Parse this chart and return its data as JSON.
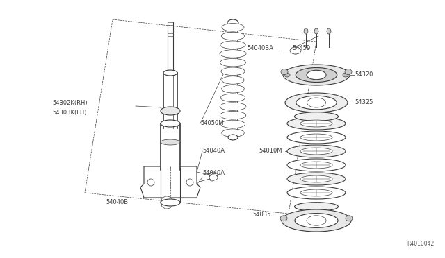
{
  "bg_color": "#ffffff",
  "lc": "#3a3a3a",
  "fig_width": 6.4,
  "fig_height": 3.72,
  "dpi": 100,
  "watermark": "R4010042",
  "labels": {
    "54302K_RH": "54302K(RH)",
    "54303K_LH": "54303K(LH)",
    "54040A_1": "54040A",
    "54040A_2": "54040A",
    "54040B": "54040B",
    "54050M": "54050M",
    "54040BA": "54040BA",
    "54459": "54459",
    "54320": "54320",
    "54325": "54325",
    "54010M": "54010M",
    "54035": "54035"
  }
}
